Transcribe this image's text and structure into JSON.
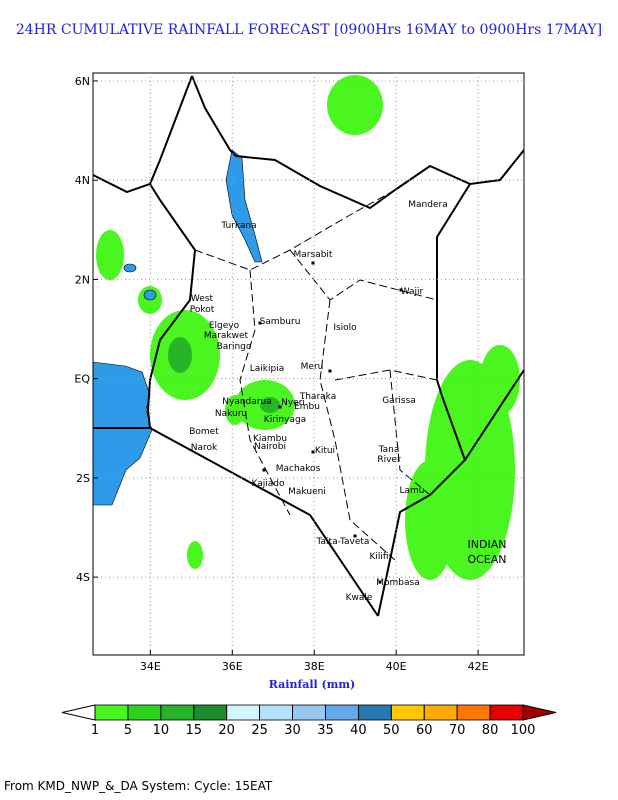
{
  "title": "24HR CUMULATIVE RAINFALL FORECAST [0900Hrs 16MAY to 0900Hrs 17MAY]",
  "map": {
    "xlim": [
      32.6,
      43.12
    ],
    "ylim": [
      -5.57,
      6.16
    ],
    "xticks": [
      {
        "value": 34,
        "label": "34E"
      },
      {
        "value": 36,
        "label": "36E"
      },
      {
        "value": 38,
        "label": "38E"
      },
      {
        "value": 40,
        "label": "40E"
      },
      {
        "value": 42,
        "label": "42E"
      }
    ],
    "yticks": [
      {
        "value": 6,
        "label": "6N"
      },
      {
        "value": 4,
        "label": "4N"
      },
      {
        "value": 2,
        "label": "2N"
      },
      {
        "value": 0,
        "label": "EQ"
      },
      {
        "value": -2,
        "label": "2S"
      },
      {
        "value": -4,
        "label": "4S"
      }
    ],
    "grid": true,
    "places": [
      "Mandera",
      "Turkana",
      "Marsabit",
      "Wajir",
      "West",
      "Pokot",
      "Elgeyo",
      "Marakwet",
      "Samburu",
      "Isiolo",
      "Baringo",
      "Laikipia",
      "Meru",
      "Nyandarua",
      "Tharaka",
      "Nyeri",
      "Embu",
      "Nakuru",
      "Kirinyaga",
      "Garissa",
      "Bomet",
      "Narok",
      "Kiambu",
      "Nairobi",
      "Kitui",
      "Tana",
      "River",
      "Machakos",
      "Kajiado",
      "Makueni",
      "Lamu",
      "Taita-Taveta",
      "Kilifi",
      "Mombasa",
      "Kwale",
      "INDIAN",
      "OCEAN"
    ]
  },
  "colorbar": {
    "title": "Rainfall (mm)",
    "levels": [
      1,
      5,
      10,
      15,
      20,
      25,
      30,
      35,
      40,
      50,
      60,
      70,
      80,
      100
    ],
    "colors": [
      "#4bf51f",
      "#2dd21e",
      "#28b428",
      "#1e8c2d",
      "#d2f5ff",
      "#b4e1fa",
      "#96c8f0",
      "#64aaeb",
      "#2878b4",
      "#ffc800",
      "#ffaa00",
      "#ff7800",
      "#e60000"
    ],
    "under": "#ffffff",
    "over": "#a00000"
  },
  "footer": "From KMD_NWP_&_DA System: Cycle: 15EAT"
}
